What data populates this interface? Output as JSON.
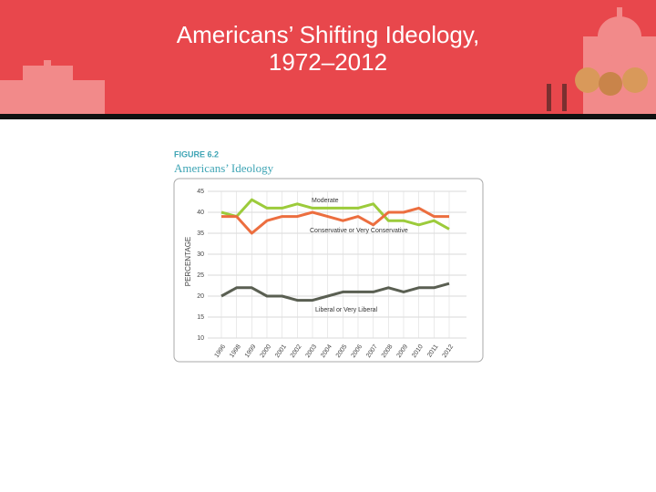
{
  "slide_title": [
    "Americans’ Shifting Ideology,",
    "1972–2012"
  ],
  "chart_data": {
    "type": "line",
    "figure_label": "FIGURE 6.2",
    "title": "Americans’ Ideology",
    "y_label": "PERCENTAGE",
    "categories": [
      "1996",
      "1998",
      "1999",
      "2000",
      "2001",
      "2002",
      "2003",
      "2004",
      "2005",
      "2006",
      "2007",
      "2008",
      "2009",
      "2010",
      "2011",
      "2012"
    ],
    "series": [
      {
        "name": "Moderate",
        "color": "#9ccb3b",
        "values": [
          40,
          39,
          43,
          41,
          41,
          42,
          41,
          41,
          41,
          41,
          42,
          38,
          38,
          37,
          38,
          36
        ]
      },
      {
        "name": "Conservative or Very Conservative",
        "color": "#ec6e3f",
        "values": [
          39,
          39,
          35,
          38,
          39,
          39,
          40,
          39,
          38,
          39,
          37,
          40,
          40,
          41,
          39,
          39
        ]
      },
      {
        "name": "Liberal or Very Liberal",
        "color": "#5a5f52",
        "values": [
          20,
          22,
          22,
          20,
          20,
          19,
          19,
          20,
          21,
          21,
          21,
          22,
          21,
          22,
          22,
          23
        ]
      }
    ],
    "ylim": [
      10,
      45
    ],
    "yticks": [
      10,
      15,
      20,
      25,
      30,
      35,
      40,
      45
    ],
    "grid": true
  }
}
